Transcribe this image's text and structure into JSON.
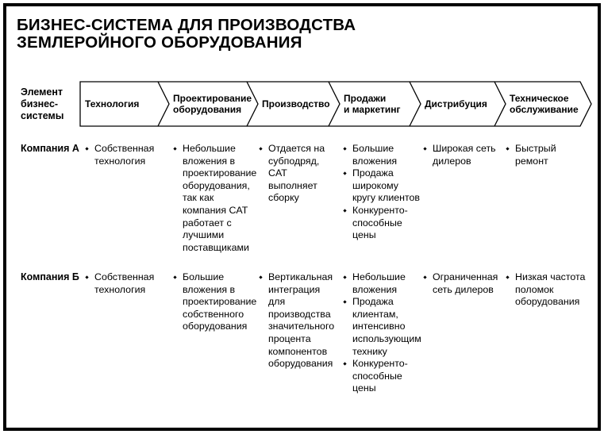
{
  "title": "БИЗНЕС-СИСТЕМА ДЛЯ ПРОИЗВОДСТВА\nЗЕМЛЕРОЙНОГО ОБОРУДОВАНИЯ",
  "colors": {
    "ink": "#000000",
    "background": "#ffffff"
  },
  "header": {
    "axis_label": "Элемент\nбизнес-\nсистемы",
    "stages": [
      {
        "label": "Технология"
      },
      {
        "label": "Проектирование\nоборудования"
      },
      {
        "label": "Производство"
      },
      {
        "label": "Продажи\nи маркетинг"
      },
      {
        "label": "Дистрибуция"
      },
      {
        "label": "Техническое\nобслуживание"
      }
    ]
  },
  "rows": [
    {
      "label": "Компания А",
      "cells": [
        {
          "bullets": [
            "Собственная технология"
          ]
        },
        {
          "bullets": [
            "Небольшие вложения в проектирование оборудования, так как компания CAT работает с лучшими поставщиками"
          ]
        },
        {
          "bullets": [
            "Отдается на субподряд, CAT выполняет сборку"
          ]
        },
        {
          "bullets": [
            "Большие вложения",
            "Продажа широкому кругу клиентов",
            "Конкуренто-способные цены"
          ]
        },
        {
          "bullets": [
            "Широкая сеть дилеров"
          ]
        },
        {
          "bullets": [
            "Быстрый ремонт"
          ]
        }
      ]
    },
    {
      "label": "Компания Б",
      "cells": [
        {
          "bullets": [
            "Собственная технология"
          ]
        },
        {
          "bullets": [
            "Большие вложения в проектирование собственного оборудования"
          ]
        },
        {
          "bullets": [
            "Вертикальная интеграция для производства значительного процента компонентов оборудования"
          ]
        },
        {
          "bullets": [
            "Небольшие вложения",
            "Продажа клиентам, интенсивно использующим технику",
            "Конкуренто-способные цены"
          ]
        },
        {
          "bullets": [
            "Ограниченная сеть дилеров"
          ]
        },
        {
          "bullets": [
            "Низкая частота поломок оборудования"
          ]
        }
      ]
    }
  ]
}
